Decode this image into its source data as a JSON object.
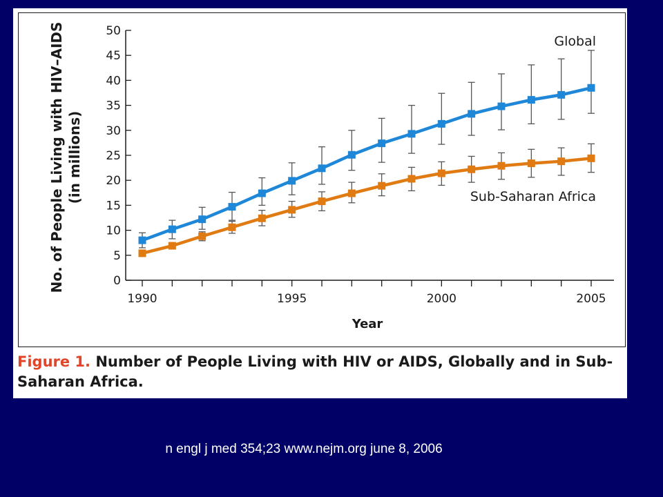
{
  "caption": {
    "label": "Figure 1.",
    "text": "Number of People Living with HIV or AIDS, Globally and in Sub-Saharan Africa."
  },
  "citation": "n engl j med 354;23 www.nejm.org june 8, 2006",
  "chart_data": {
    "type": "line",
    "title": "Number of People Living with HIV or AIDS, Globally and in Sub-Saharan Africa.",
    "xlabel": "Year",
    "ylabel_line1": "No. of People Living with HIV–AIDS",
    "ylabel_line2": "(in millions)",
    "x": [
      1990,
      1991,
      1992,
      1993,
      1994,
      1995,
      1996,
      1997,
      1998,
      1999,
      2000,
      2001,
      2002,
      2003,
      2004,
      2005
    ],
    "xlim": [
      1990,
      2005
    ],
    "ylim": [
      0,
      50
    ],
    "x_ticks": [
      "1990",
      "1995",
      "2000",
      "2005"
    ],
    "y_ticks": [
      "0",
      "5",
      "10",
      "15",
      "20",
      "25",
      "30",
      "35",
      "40",
      "45",
      "50"
    ],
    "series": [
      {
        "name": "Global",
        "color": "#1f87d8",
        "values": [
          8.0,
          10.2,
          12.2,
          14.7,
          17.4,
          19.9,
          22.4,
          25.1,
          27.4,
          29.3,
          31.3,
          33.3,
          34.8,
          36.1,
          37.1,
          38.5
        ],
        "error_low": [
          6.5,
          8.3,
          10.2,
          12.0,
          15.0,
          17.1,
          19.2,
          22.0,
          23.6,
          25.4,
          27.2,
          29.0,
          30.1,
          31.3,
          32.2,
          33.4
        ],
        "error_high": [
          9.5,
          12.0,
          14.6,
          17.6,
          20.5,
          23.5,
          26.7,
          30.0,
          32.4,
          35.0,
          37.4,
          39.6,
          41.3,
          43.1,
          44.3,
          46.0
        ]
      },
      {
        "name": "Sub-Saharan Africa",
        "color": "#e07b13",
        "values": [
          5.4,
          6.9,
          8.8,
          10.6,
          12.4,
          14.1,
          15.8,
          17.4,
          18.9,
          20.3,
          21.4,
          22.2,
          22.9,
          23.4,
          23.8,
          24.4
        ],
        "error_low": [
          4.9,
          6.3,
          7.9,
          9.4,
          10.9,
          12.6,
          13.9,
          15.5,
          16.9,
          17.9,
          19.0,
          19.6,
          20.2,
          20.6,
          21.0,
          21.6
        ],
        "error_high": [
          5.9,
          7.5,
          9.7,
          11.8,
          14.0,
          15.8,
          17.7,
          19.6,
          21.3,
          22.6,
          23.7,
          24.8,
          25.5,
          26.2,
          26.5,
          27.3
        ]
      }
    ],
    "annotations": [
      "Global",
      "Sub-Saharan Africa"
    ]
  }
}
